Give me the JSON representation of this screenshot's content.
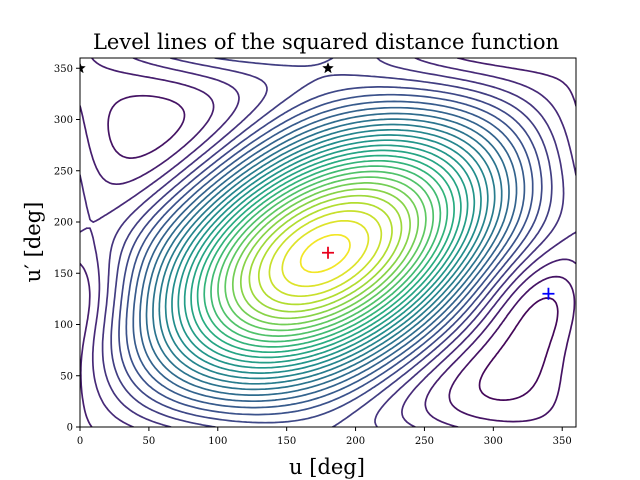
{
  "chart_data": {
    "type": "contour",
    "title": "Level lines of the squared distance function",
    "xlabel": "u [deg]",
    "ylabel": "u′ [deg]",
    "xlim": [
      0,
      360
    ],
    "ylim": [
      0,
      360
    ],
    "xticks": [
      "0",
      "50",
      "100",
      "150",
      "200",
      "250",
      "300",
      "350"
    ],
    "yticks": [
      "0",
      "50",
      "100",
      "150",
      "200",
      "250",
      "300",
      "350"
    ],
    "grid": false,
    "colormap": [
      "#440154",
      "#472d7b",
      "#3b528b",
      "#2c728e",
      "#21918c",
      "#28ae80",
      "#5ec962",
      "#addc30",
      "#fde725"
    ],
    "levels": 30,
    "maximum": {
      "u": 180,
      "u_prime": 170,
      "marker": "plus",
      "color": "#e8001c"
    },
    "minimum": {
      "u": 340,
      "u_prime": 130,
      "marker": "plus",
      "color": "#0000ff"
    },
    "saddle_points": [
      {
        "u": 0,
        "u_prime": 350,
        "marker": "star",
        "color": "#000000"
      },
      {
        "u": 180,
        "u_prime": 350,
        "marker": "star",
        "color": "#000000"
      }
    ]
  }
}
